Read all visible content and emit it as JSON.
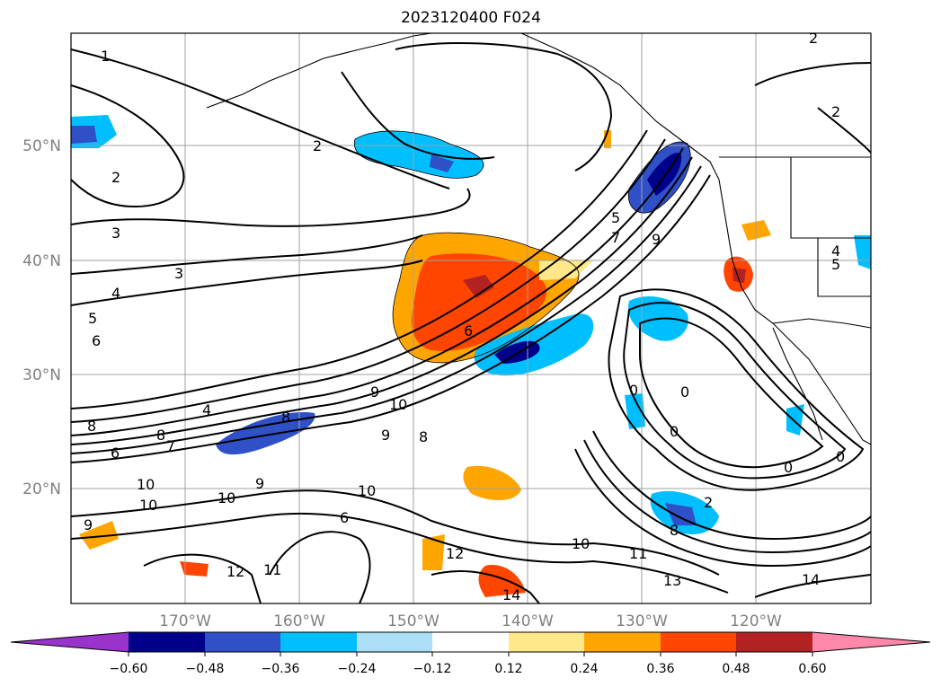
{
  "title": "2023120400 F024",
  "lat_labels": [
    "50°N",
    "40°N",
    "30°N",
    "20°N"
  ],
  "lon_labels": [
    "170°W",
    "160°W",
    "150°W",
    "140°W",
    "130°W",
    "120°W"
  ],
  "colorbar": {
    "ticks": [
      "−0.60",
      "−0.48",
      "−0.36",
      "−0.24",
      "−0.12",
      "0.12",
      "0.24",
      "0.36",
      "0.48",
      "0.60"
    ],
    "colors": [
      "#9933cc",
      "#00008b",
      "#3050c8",
      "#00bfff",
      "#aadff7",
      "#ffffff",
      "#ffe88a",
      "#ffa500",
      "#ff4500",
      "#b22222",
      "#ff88aa"
    ]
  },
  "contour_labels": [
    "1",
    "2",
    "2",
    "2",
    "2",
    "3",
    "3",
    "4",
    "4",
    "4",
    "5",
    "5",
    "5",
    "6",
    "6",
    "6",
    "6",
    "7",
    "7",
    "8",
    "8",
    "8",
    "8",
    "9",
    "9",
    "9",
    "9",
    "9",
    "10",
    "10",
    "10",
    "10",
    "10",
    "10",
    "11",
    "11",
    "12",
    "12",
    "13",
    "14",
    "14",
    "0",
    "0",
    "0",
    "0",
    "0",
    "2",
    "8"
  ]
}
